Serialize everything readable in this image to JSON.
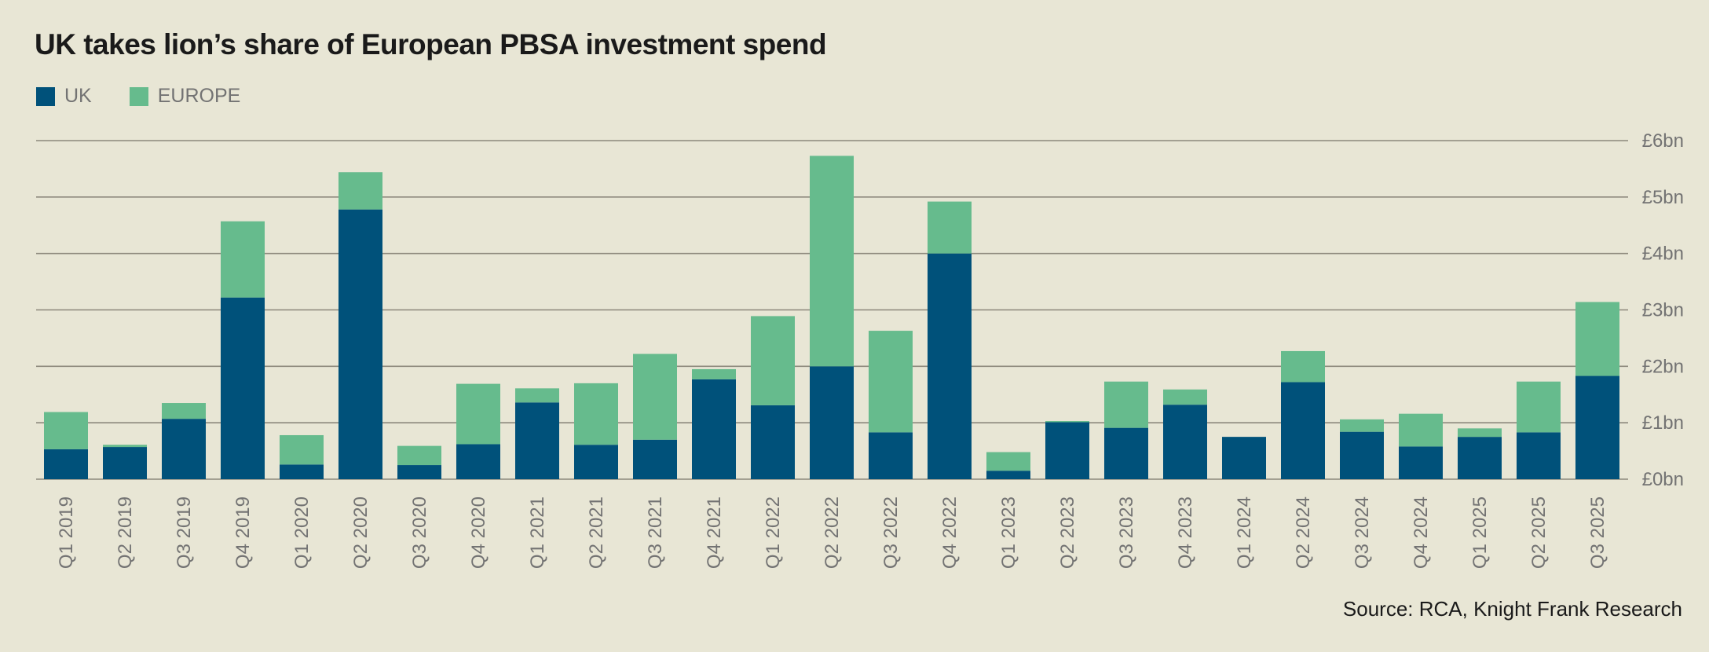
{
  "title": "UK takes lion’s share of European PBSA investment spend",
  "source": "Source: RCA, Knight Frank Research",
  "legend": [
    {
      "label": "UK",
      "color": "#00517A"
    },
    {
      "label": "EUROPE",
      "color": "#66BB8D"
    }
  ],
  "chart_data": {
    "type": "bar",
    "stacked": true,
    "title": "UK takes lion’s share of European PBSA investment spend",
    "xlabel": "",
    "ylabel": "",
    "ylim": [
      0,
      6
    ],
    "yticks": [
      0,
      1,
      2,
      3,
      4,
      5,
      6
    ],
    "ytick_labels": [
      "£0bn",
      "£1bn",
      "£2bn",
      "£3bn",
      "£4bn",
      "£5bn",
      "£6bn"
    ],
    "y_axis_position": "right",
    "grid": true,
    "legend_position": "top-left",
    "categories": [
      "Q1 2019",
      "Q2 2019",
      "Q3 2019",
      "Q4 2019",
      "Q1 2020",
      "Q2 2020",
      "Q3 2020",
      "Q4 2020",
      "Q1 2021",
      "Q2 2021",
      "Q3 2021",
      "Q4 2021",
      "Q1 2022",
      "Q2 2022",
      "Q3 2022",
      "Q4 2022",
      "Q1 2023",
      "Q2 2023",
      "Q3 2023",
      "Q4 2023",
      "Q1 2024",
      "Q2 2024",
      "Q3 2024",
      "Q4 2024",
      "Q1 2025",
      "Q2 2025",
      "Q3 2025"
    ],
    "series": [
      {
        "name": "UK",
        "color": "#00517A",
        "values": [
          0.53,
          0.57,
          1.07,
          3.22,
          0.26,
          4.78,
          0.25,
          0.62,
          1.36,
          0.61,
          0.7,
          1.77,
          1.31,
          2.0,
          0.83,
          4.0,
          0.15,
          1.01,
          0.91,
          1.32,
          0.75,
          1.72,
          0.84,
          0.58,
          0.75,
          0.83,
          1.83
        ]
      },
      {
        "name": "EUROPE",
        "color": "#66BB8D",
        "values": [
          0.66,
          0.04,
          0.28,
          1.35,
          0.52,
          0.66,
          0.34,
          1.07,
          0.25,
          1.09,
          1.52,
          0.18,
          1.58,
          3.73,
          1.8,
          0.92,
          0.33,
          0.02,
          0.82,
          0.27,
          0.0,
          0.55,
          0.22,
          0.58,
          0.15,
          0.9,
          1.31
        ]
      }
    ]
  }
}
